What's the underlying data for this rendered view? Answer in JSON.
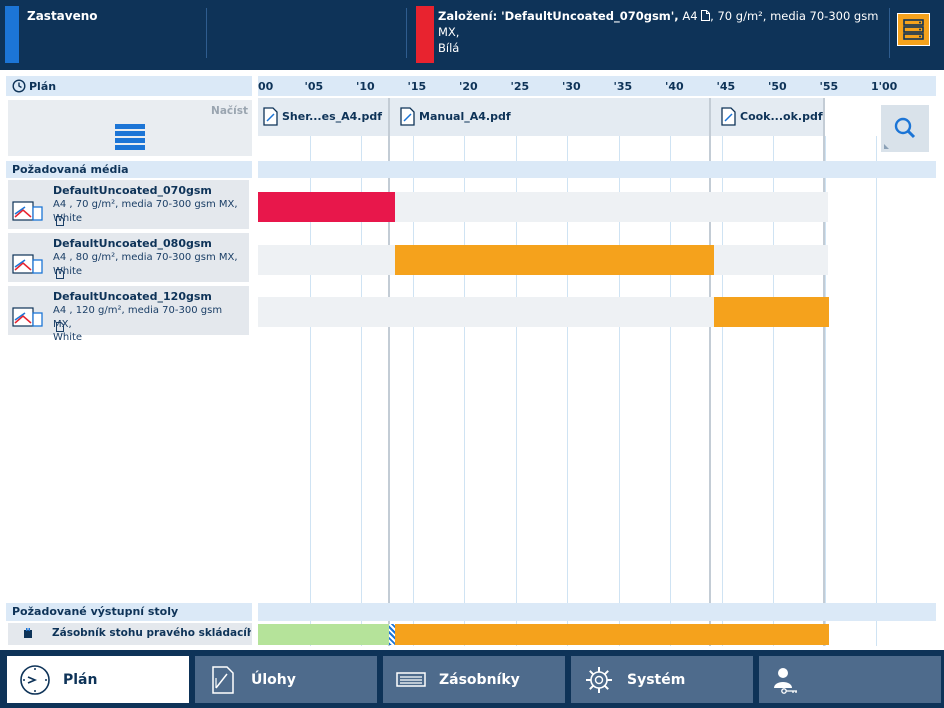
{
  "status": {
    "text": "Zastaveno",
    "indicator_color": "#1c75d6"
  },
  "alert": {
    "title": "Založení: 'DefaultUncoated_070gsm',",
    "size": "A4",
    "detail": ", 70 g/m², media 70-300 gsm MX,",
    "line2": "Bílá",
    "indicator_color": "#e8232f",
    "icon": "page-icon"
  },
  "menu_button": {
    "icon": "list-stack-icon"
  },
  "plan": {
    "header_label": "Plán",
    "header_icon": "clock-icon",
    "time_ticks": [
      "00",
      "'05",
      "'10",
      "'15",
      "'20",
      "'25",
      "'30",
      "'35",
      "'40",
      "'45",
      "'50",
      "'55",
      "1'00"
    ],
    "load_label": "Načíst",
    "load_icon": "queue-list-icon",
    "search_icon": "search-icon",
    "files": [
      {
        "name": "Sher...es_A4.pdf",
        "icon": "document-icon"
      },
      {
        "name": "Manual_A4.pdf",
        "icon": "document-icon"
      },
      {
        "name": "Cook...ok.pdf",
        "icon": "document-icon"
      }
    ],
    "media_section_label": "Požadovaná média",
    "media": [
      {
        "name": "DefaultUncoated_070gsm",
        "size": "A4",
        "desc1": ", 70 g/m², media 70-300 gsm MX,",
        "desc2": "White",
        "bar_color": "#e8174b",
        "start_min": 0,
        "end_min": 13.3
      },
      {
        "name": "DefaultUncoated_080gsm",
        "size": "A4",
        "desc1": ", 80 g/m², media 70-300 gsm MX,",
        "desc2": "White",
        "bar_color": "#f5a21c",
        "start_min": 13.3,
        "end_min": 44.3
      },
      {
        "name": "DefaultUncoated_120gsm",
        "size": "A4",
        "desc1": ", 120 g/m², media 70-300 gsm MX,",
        "desc2": "White",
        "bar_color": "#f5a21c",
        "start_min": 44.3,
        "end_min": 55.4
      }
    ],
    "output_section_label": "Požadované výstupní stoly",
    "output": {
      "label": "Zásobník stohu pravého skládacího zař",
      "icon": "output-tray-icon",
      "done_color": "#b5e39a",
      "active_color": "#f5a21c",
      "done_end_min": 12.7,
      "active_start_min": 13.3,
      "active_end_min": 55.4
    }
  },
  "nav": [
    {
      "label": "Plán",
      "icon": "clock-icon",
      "active": true
    },
    {
      "label": "Úlohy",
      "icon": "document-icon",
      "active": false
    },
    {
      "label": "Zásobníky",
      "icon": "paper-tray-icon",
      "active": false
    },
    {
      "label": "Systém",
      "icon": "gear-icon",
      "active": false
    },
    {
      "label": "",
      "icon": "user-key-icon",
      "active": false
    }
  ]
}
